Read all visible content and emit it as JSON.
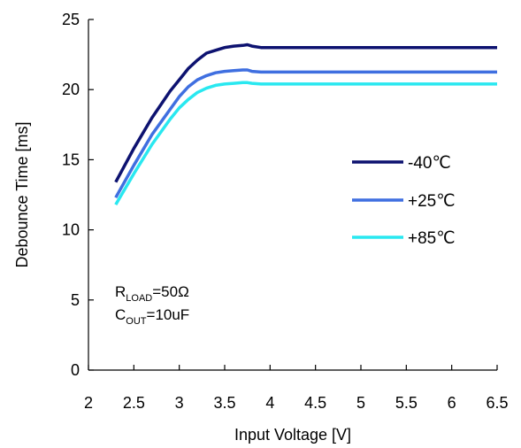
{
  "chart_data": {
    "type": "line",
    "title": "",
    "xlabel": "Input Voltage [V]",
    "ylabel": "Debounce Time [ms]",
    "xlim": [
      2,
      6.5
    ],
    "ylim": [
      0,
      25
    ],
    "xticks": [
      "2",
      "2.5",
      "3",
      "3.5",
      "4",
      "4.5",
      "5",
      "5.5",
      "6",
      "6.5"
    ],
    "yticks": [
      "0",
      "5",
      "10",
      "15",
      "20",
      "25"
    ],
    "grid": false,
    "legend_position": "right",
    "annotation": {
      "line1": {
        "main": "R",
        "sub": "LOAD",
        "rest": "=50Ω"
      },
      "line2": {
        "main": "C",
        "sub": "OUT",
        "rest": "=10uF"
      }
    },
    "series": [
      {
        "name": "-40℃",
        "color": "#0d1270",
        "x": [
          2.3,
          2.5,
          2.7,
          2.9,
          3.0,
          3.1,
          3.2,
          3.3,
          3.4,
          3.5,
          3.6,
          3.7,
          3.75,
          3.8,
          3.9,
          4.0,
          5.0,
          6.0,
          6.5
        ],
        "y": [
          13.4,
          15.8,
          18.0,
          19.9,
          20.7,
          21.5,
          22.1,
          22.6,
          22.8,
          23.0,
          23.1,
          23.15,
          23.2,
          23.1,
          23.0,
          23.0,
          23.0,
          23.0,
          23.0
        ]
      },
      {
        "name": "+25℃",
        "color": "#3f6fe0",
        "x": [
          2.3,
          2.5,
          2.7,
          2.9,
          3.0,
          3.1,
          3.2,
          3.3,
          3.4,
          3.5,
          3.6,
          3.7,
          3.75,
          3.8,
          3.9,
          4.0,
          5.0,
          6.0,
          6.5
        ],
        "y": [
          12.3,
          14.6,
          16.8,
          18.6,
          19.5,
          20.2,
          20.7,
          21.0,
          21.2,
          21.3,
          21.35,
          21.4,
          21.4,
          21.3,
          21.25,
          21.25,
          21.25,
          21.25,
          21.25
        ]
      },
      {
        "name": "+85℃",
        "color": "#29e8f0",
        "x": [
          2.3,
          2.5,
          2.7,
          2.9,
          3.0,
          3.1,
          3.2,
          3.3,
          3.4,
          3.5,
          3.6,
          3.7,
          3.75,
          3.8,
          3.9,
          4.0,
          5.0,
          6.0,
          6.5
        ],
        "y": [
          11.8,
          14.0,
          16.1,
          17.9,
          18.7,
          19.3,
          19.8,
          20.1,
          20.3,
          20.4,
          20.45,
          20.5,
          20.5,
          20.45,
          20.4,
          20.4,
          20.4,
          20.4,
          20.4
        ]
      }
    ]
  }
}
